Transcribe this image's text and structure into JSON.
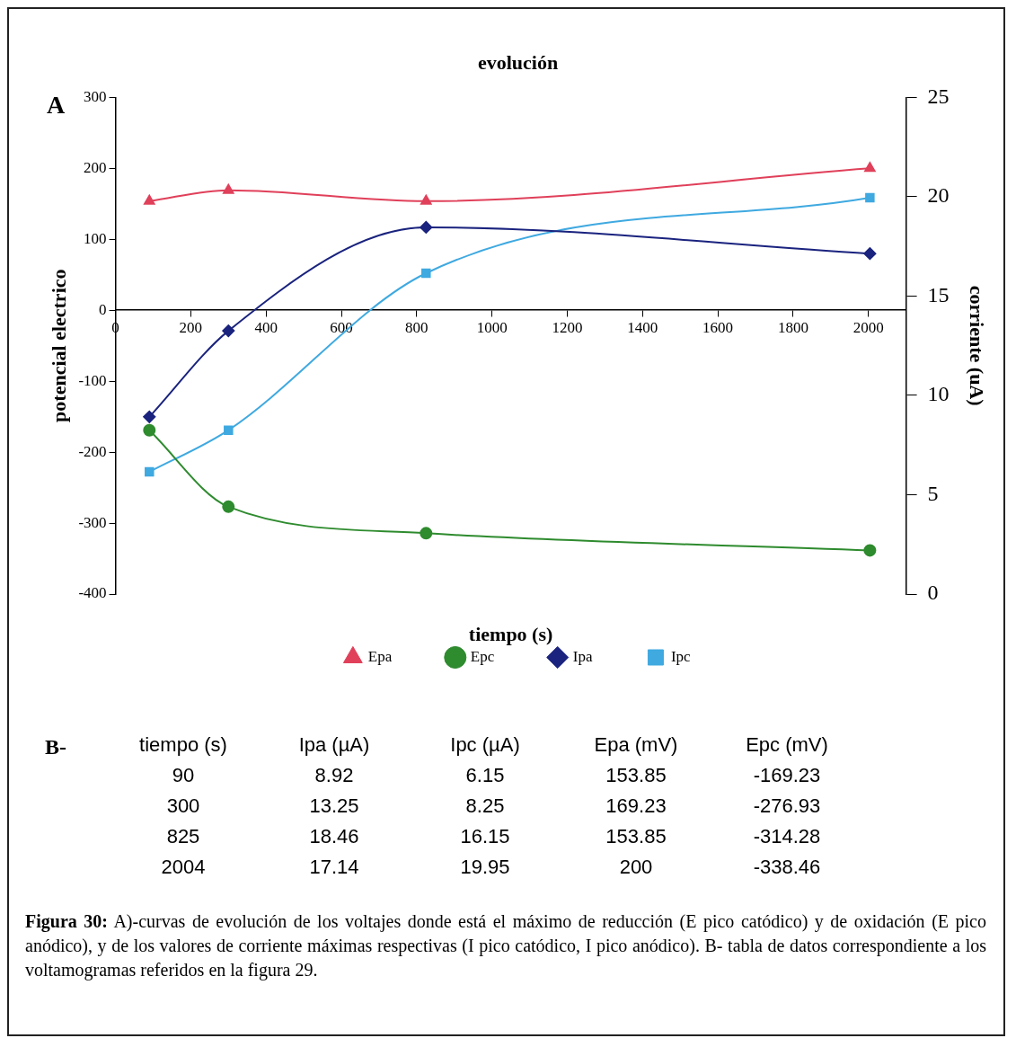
{
  "chart_data": [
    {
      "type": "line",
      "title": "evolución",
      "xlabel": "tiempo (s)",
      "ylabel": "potencial electrico",
      "y2label": "corriente (uA)",
      "x": [
        90,
        300,
        825,
        2004
      ],
      "series": [
        {
          "name": "Epa",
          "color": "#e0405a",
          "marker": "triangle",
          "values": [
            153.85,
            169.23,
            153.85,
            200
          ]
        },
        {
          "name": "Epc",
          "color": "#2e8b2e",
          "marker": "circle",
          "values": [
            -169.23,
            -276.93,
            -314.28,
            -338.46
          ]
        },
        {
          "name": "Ipa",
          "color": "#1a237e",
          "marker": "diamond",
          "axis": "y2",
          "values": [
            8.92,
            13.25,
            18.46,
            17.14
          ]
        },
        {
          "name": "Ipc",
          "color": "#3fa9e0",
          "marker": "square",
          "axis": "y2",
          "values": [
            6.15,
            8.25,
            16.15,
            19.95
          ]
        }
      ],
      "xlim": [
        0,
        2100
      ],
      "xticks": [
        0,
        200,
        400,
        600,
        800,
        1000,
        1200,
        1400,
        1600,
        1800,
        2000
      ],
      "ylim": [
        -400,
        300
      ],
      "yticks": [
        -400,
        -300,
        -200,
        -100,
        0,
        100,
        200,
        300
      ],
      "y2lim": [
        0,
        25
      ],
      "y2ticks": [
        0,
        5,
        10,
        15,
        20,
        25
      ],
      "grid": false,
      "legend": "bottom",
      "line_style": "solid",
      "annotations": [
        "A",
        "Figura 30: A)-curvas de evolución de los voltajes donde está el máximo de reducción (E pico catódico) y de oxidación (E pico anódico), y de los valores de corriente máximas respectivas (I pico catódico, I pico anódico). B- tabla de datos correspondiente a los voltamogramas referidos en la figura 29."
      ]
    },
    {
      "type": "other",
      "annotations": [
        "B-",
        "tiempo (s)",
        "Ipa (µA)",
        "Ipc (µA)",
        "Epa (mV)",
        "Epc (mV)",
        "90",
        "8.92",
        "6.15",
        "153.85",
        "-169.23",
        "300",
        "13.25",
        "8.25",
        "169.23",
        "-276.93",
        "825",
        "18.46",
        "16.15",
        "153.85",
        "-314.28",
        "2004",
        "17.14",
        "19.95",
        "200",
        "-338.46"
      ]
    }
  ]
}
